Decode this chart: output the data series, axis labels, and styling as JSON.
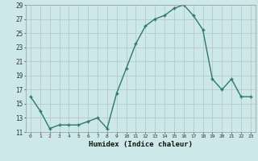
{
  "x": [
    0,
    1,
    2,
    3,
    4,
    5,
    6,
    7,
    8,
    9,
    10,
    11,
    12,
    13,
    14,
    15,
    16,
    17,
    18,
    19,
    20,
    21,
    22,
    23
  ],
  "y": [
    16,
    14,
    11.5,
    12,
    12,
    12,
    12.5,
    13,
    11.5,
    16.5,
    20,
    23.5,
    26,
    27,
    27.5,
    28.5,
    29,
    27.5,
    25.5,
    18.5,
    17,
    18.5,
    16,
    16
  ],
  "xlabel": "Humidex (Indice chaleur)",
  "line_color": "#2d7a6a",
  "marker": "+",
  "bg_color": "#cce8e8",
  "grid_color": "#b8c8c8",
  "ylim": [
    11,
    29
  ],
  "xlim": [
    -0.5,
    23.5
  ],
  "yticks": [
    11,
    13,
    15,
    17,
    19,
    21,
    23,
    25,
    27,
    29
  ],
  "xticks": [
    0,
    1,
    2,
    3,
    4,
    5,
    6,
    7,
    8,
    9,
    10,
    11,
    12,
    13,
    14,
    15,
    16,
    17,
    18,
    19,
    20,
    21,
    22,
    23
  ]
}
